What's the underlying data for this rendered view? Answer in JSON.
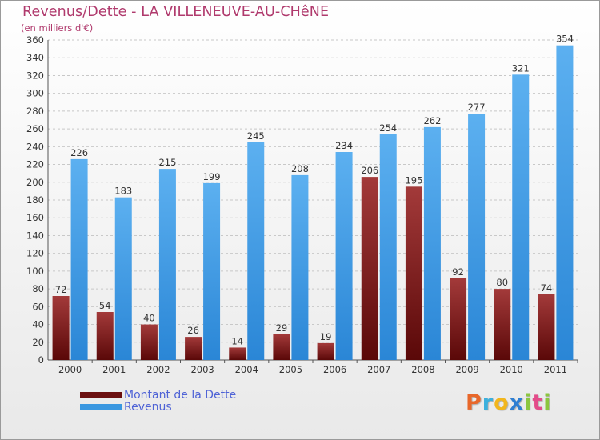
{
  "title": "Revenus/Dette - LA VILLENEUVE-AU-CHêNE",
  "subtitle": "(en milliers d'€)",
  "chart_data": {
    "type": "bar",
    "categories": [
      "2000",
      "2001",
      "2002",
      "2003",
      "2004",
      "2005",
      "2006",
      "2007",
      "2008",
      "2009",
      "2010",
      "2011"
    ],
    "series": [
      {
        "name": "Montant de la Dette",
        "values": [
          72,
          54,
          40,
          26,
          14,
          29,
          19,
          206,
          195,
          92,
          80,
          74
        ],
        "color": "#8b1a1a"
      },
      {
        "name": "Revenus",
        "values": [
          226,
          183,
          215,
          199,
          245,
          208,
          234,
          254,
          262,
          277,
          321,
          354
        ],
        "color": "#3a97e0"
      }
    ],
    "ylim": [
      0,
      360
    ],
    "yticks": [
      0,
      20,
      40,
      60,
      80,
      100,
      120,
      140,
      160,
      180,
      200,
      220,
      240,
      260,
      280,
      300,
      320,
      340,
      360
    ],
    "grid": true,
    "legend_position": "bottom-left"
  },
  "legend": [
    {
      "label": "Montant de la Dette",
      "color": "#6b0f0f"
    },
    {
      "label": "Revenus",
      "color": "#3a97e0"
    }
  ],
  "logo": {
    "letters": [
      "P",
      "r",
      "o",
      "x",
      "i",
      "t",
      "i"
    ],
    "colors": [
      "#e8672a",
      "#3bb0dd",
      "#f2b61c",
      "#2f7fd2",
      "#8cc63f",
      "#e34c8a",
      "#8cc63f"
    ]
  }
}
